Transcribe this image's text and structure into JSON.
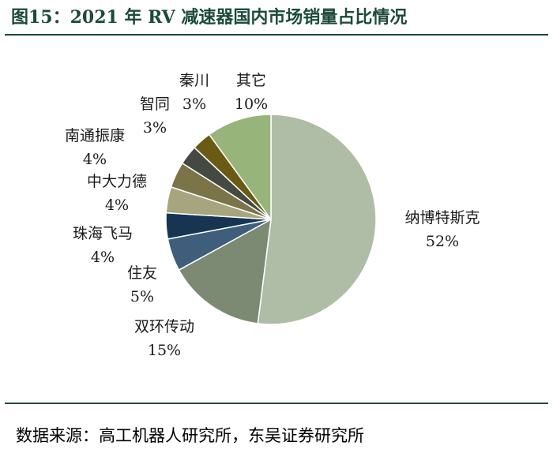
{
  "title": "图15：2021 年 RV 减速器国内市场销量占比情况",
  "source": "数据来源：高工机器人研究所，东吴证券研究所",
  "chart_data": {
    "type": "pie",
    "title": "",
    "start": "top, clockwise",
    "slices": [
      {
        "label": "纳博特斯克",
        "value": 52,
        "display": "52%",
        "color": "#b0bda6"
      },
      {
        "label": "双环传动",
        "value": 15,
        "display": "15%",
        "color": "#7c8a73"
      },
      {
        "label": "住友",
        "value": 5,
        "display": "5%",
        "color": "#3e5e7b"
      },
      {
        "label": "珠海飞马",
        "value": 4,
        "display": "4%",
        "color": "#173553"
      },
      {
        "label": "中大力德",
        "value": 4,
        "display": "4%",
        "color": "#a7a57e"
      },
      {
        "label": "南通振康",
        "value": 4,
        "display": "4%",
        "color": "#7a7448"
      },
      {
        "label": "智同",
        "value": 3,
        "display": "3%",
        "color": "#444a41"
      },
      {
        "label": "秦川",
        "value": 3,
        "display": "3%",
        "color": "#6b5a14"
      },
      {
        "label": "其它",
        "value": 10,
        "display": "10%",
        "color": "#97b47a"
      }
    ]
  }
}
